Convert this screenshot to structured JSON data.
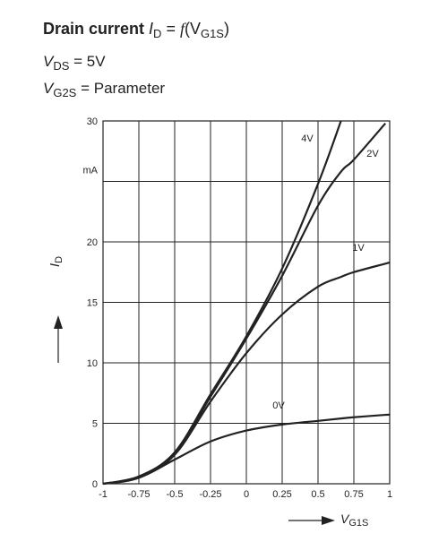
{
  "chart_data": {
    "type": "line",
    "title": {
      "lead": "Drain current ",
      "symbol": "I",
      "sub": "D",
      "eq": " = ",
      "func": "f",
      "open": "(V",
      "arg_sub": "G1S",
      "close": ")"
    },
    "conditions": [
      {
        "symbol": "V",
        "sub": "DS",
        "rest": " = 5V"
      },
      {
        "symbol": "V",
        "sub": "G2S",
        "rest": " = Parameter"
      }
    ],
    "y_label": {
      "symbol": "I",
      "sub": "D"
    },
    "x_label": {
      "symbol": "V",
      "sub": "G1S"
    },
    "x": [
      -1,
      -0.75,
      -0.5,
      -0.25,
      0,
      0.25,
      0.5,
      0.66,
      0.75,
      0.97,
      1
    ],
    "series": [
      {
        "name": "4V",
        "color": "#222222",
        "values": [
          0,
          0.6,
          2.6,
          7.4,
          12.2,
          17.8,
          24.8,
          30,
          null,
          null,
          null
        ]
      },
      {
        "name": "2V",
        "color": "#222222",
        "values": [
          0,
          0.6,
          2.5,
          7.2,
          12,
          17.2,
          23,
          25.8,
          26.8,
          29.8,
          null
        ]
      },
      {
        "name": "1V",
        "color": "#222222",
        "values": [
          0,
          0.5,
          2.4,
          6.8,
          10.8,
          14,
          16.3,
          17.1,
          17.5,
          18.2,
          18.3
        ]
      },
      {
        "name": "0V",
        "color": "#222222",
        "values": [
          0,
          0.5,
          2,
          3.5,
          4.4,
          4.9,
          5.2,
          5.4,
          5.5,
          5.7,
          5.7
        ]
      }
    ],
    "xlim": [
      -1,
      1
    ],
    "xticks": [
      -1,
      -0.75,
      -0.5,
      -0.25,
      0,
      0.25,
      0.5,
      0.75,
      1
    ],
    "ylim": [
      0,
      30
    ],
    "yticks": [
      0,
      5,
      10,
      15,
      20,
      {
        "value": 25,
        "label": "mA"
      },
      30
    ],
    "grid": true
  }
}
